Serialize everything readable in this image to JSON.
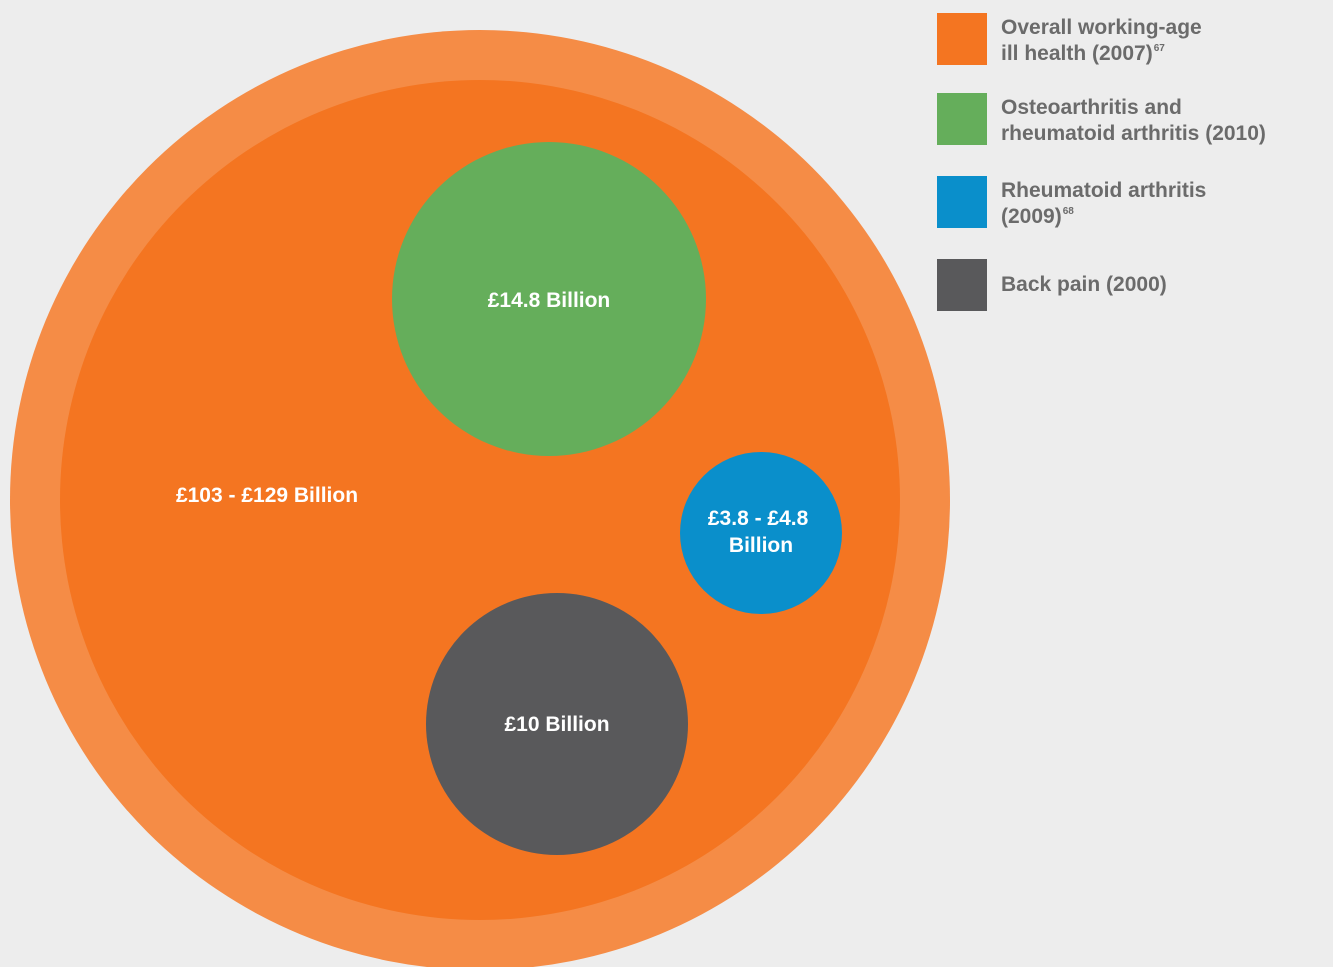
{
  "chart_data": {
    "type": "bubble",
    "series": [
      {
        "name": "Overall working-age ill health (2007)",
        "sup": "67",
        "value_label": "£103 - £129 Billion",
        "min": 103,
        "max": 129,
        "unit": "£ Billion",
        "color": "#f47521"
      },
      {
        "name": "Osteoarthritis and rheumatoid arthritis (2010)",
        "sup": "",
        "value_label": "£14.8 Billion",
        "min": 14.8,
        "max": 14.8,
        "unit": "£ Billion",
        "color": "#65ae5b"
      },
      {
        "name": "Rheumatoid arthritis (2009)",
        "sup": "68",
        "value_label": "£3.8 - £4.8 Billion",
        "min": 3.8,
        "max": 4.8,
        "unit": "£ Billion",
        "color": "#0a8fcb"
      },
      {
        "name": "Back pain (2000)",
        "sup": "",
        "value_label": "£10 Billion",
        "min": 10,
        "max": 10,
        "unit": "£ Billion",
        "color": "#59595b"
      }
    ],
    "range_band_color": "#f58c46",
    "legend_position": "top-right"
  },
  "legend": {
    "items": [
      {
        "line1": "Overall working-age",
        "line2": "ill health (2007)",
        "sup": "67",
        "color": "#f47521"
      },
      {
        "line1": "Osteoarthritis and",
        "line2": "rheumatoid arthritis (2010)",
        "sup": "",
        "color": "#65ae5b"
      },
      {
        "line1": "Rheumatoid arthritis",
        "line2": "(2009)",
        "sup": "68",
        "color": "#0a8fcb"
      },
      {
        "line1": "Back pain (2000)",
        "line2": "",
        "sup": "",
        "color": "#59595b"
      }
    ]
  }
}
